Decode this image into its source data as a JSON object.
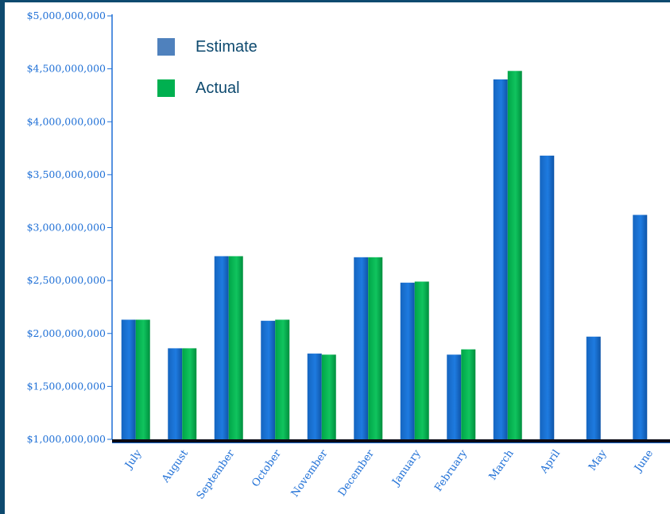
{
  "chart_data": {
    "type": "bar",
    "categories": [
      "July",
      "August",
      "September",
      "October",
      "November",
      "December",
      "January",
      "February",
      "March",
      "April",
      "May",
      "June"
    ],
    "series": [
      {
        "name": "Estimate",
        "values": [
          2130000000,
          1860000000,
          2730000000,
          2120000000,
          1810000000,
          2720000000,
          2480000000,
          1800000000,
          4400000000,
          3680000000,
          1970000000,
          3120000000
        ],
        "color": "#1565c0"
      },
      {
        "name": "Actual",
        "values": [
          2130000000,
          1860000000,
          2730000000,
          2130000000,
          1800000000,
          2720000000,
          2490000000,
          1850000000,
          4480000000,
          null,
          null,
          null
        ],
        "color": "#00b050"
      }
    ],
    "yticks": [
      "$1,000,000,000",
      "$1,500,000,000",
      "$2,000,000,000",
      "$2,500,000,000",
      "$3,000,000,000",
      "$3,500,000,000",
      "$4,000,000,000",
      "$4,500,000,000",
      "$5,000,000,000"
    ],
    "ylim": [
      1000000000,
      5000000000
    ],
    "grid": false,
    "legend_position": "top-left",
    "title": "",
    "xlabel": "",
    "ylabel": ""
  }
}
